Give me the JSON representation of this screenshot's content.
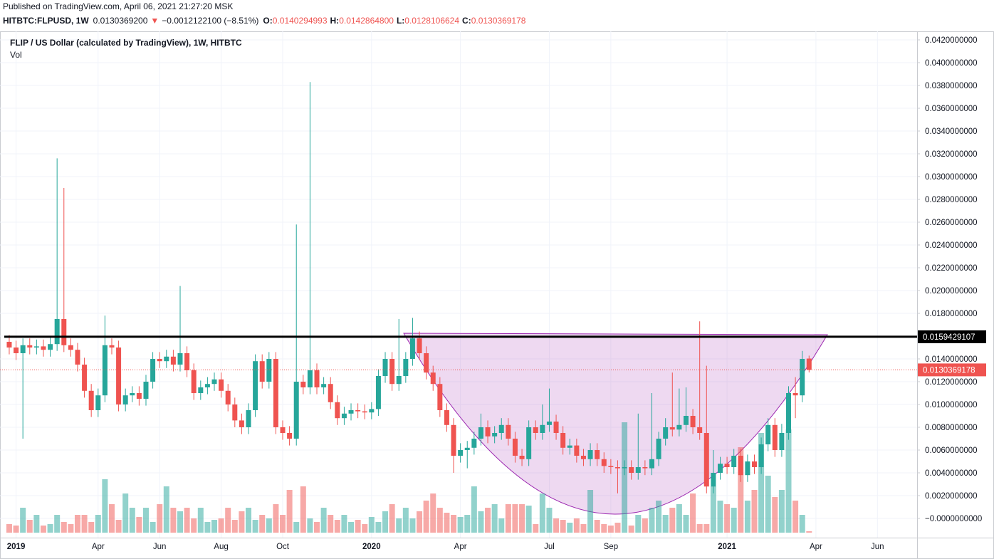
{
  "header": {
    "published": "Published on TradingView.com, April 06, 2021 21:27:20 MSK",
    "symbol": "HITBTC:FLPUSD, 1W",
    "last": "0.0130369200",
    "arrow": "▼",
    "change": "−0.0012122100 (−8.51%)",
    "o_label": "O:",
    "open": "0.0140294993",
    "h_label": "H:",
    "high": "0.0142864800",
    "l_label": "L:",
    "low": "0.0128106624",
    "c_label": "C:",
    "close": "0.0130369178"
  },
  "chart_data": {
    "type": "candlestick",
    "title": "FLIP / US Dollar (calculated by TradingView), 1W, HITBTC",
    "volume_label": "Vol",
    "up_color": "#26a69a",
    "down_color": "#ef5350",
    "grid": true,
    "xlim": [
      -1.35,
      132.8
    ],
    "xticks": [
      {
        "value": 1,
        "label": "2019"
      },
      {
        "value": 13,
        "label": "Apr"
      },
      {
        "value": 22,
        "label": "Jun"
      },
      {
        "value": 31,
        "label": "Aug"
      },
      {
        "value": 40,
        "label": "Oct"
      },
      {
        "value": 53,
        "label": "2020"
      },
      {
        "value": 66,
        "label": "Apr"
      },
      {
        "value": 79,
        "label": "Jul"
      },
      {
        "value": 88,
        "label": "Sep"
      },
      {
        "value": 105,
        "label": "2021"
      },
      {
        "value": 118,
        "label": "Apr"
      },
      {
        "value": 127,
        "label": "Jun"
      }
    ],
    "ylim": [
      -0.0016875,
      0.04275
    ],
    "yticks": [
      {
        "value": 0.042,
        "label": "0.0420000000"
      },
      {
        "value": 0.04,
        "label": "0.0400000000"
      },
      {
        "value": 0.038,
        "label": "0.0380000000"
      },
      {
        "value": 0.036,
        "label": "0.0360000000"
      },
      {
        "value": 0.034,
        "label": "0.0340000000"
      },
      {
        "value": 0.032,
        "label": "0.0320000000"
      },
      {
        "value": 0.03,
        "label": "0.0300000000"
      },
      {
        "value": 0.028,
        "label": "0.0280000000"
      },
      {
        "value": 0.026,
        "label": "0.0260000000"
      },
      {
        "value": 0.024,
        "label": "0.0240000000"
      },
      {
        "value": 0.022,
        "label": "0.0220000000"
      },
      {
        "value": 0.02,
        "label": "0.0200000000"
      },
      {
        "value": 0.018,
        "label": "0.0180000000"
      },
      {
        "value": 0.016,
        "label": "0.0160000000"
      },
      {
        "value": 0.014,
        "label": "0.0140000000"
      },
      {
        "value": 0.012,
        "label": "0.0120000000"
      },
      {
        "value": 0.01,
        "label": "0.0100000000"
      },
      {
        "value": 0.008,
        "label": "0.0080000000"
      },
      {
        "value": 0.006,
        "label": "0.0060000000"
      },
      {
        "value": 0.004,
        "label": "0.0040000000"
      },
      {
        "value": 0.002,
        "label": "0.0020000000"
      },
      {
        "value": 0,
        "label": "−0.0000000000"
      }
    ],
    "hline": 0.0159429107,
    "open": [
      0.0155,
      0.015,
      0.0145,
      0.0152,
      0.015,
      0.0151,
      0.0148,
      0.0153,
      0.0175,
      0.0152,
      0.0148,
      0.0135,
      0.0112,
      0.0095,
      0.0108,
      0.0152,
      0.015,
      0.01,
      0.0108,
      0.011,
      0.0105,
      0.012,
      0.014,
      0.0138,
      0.0142,
      0.0135,
      0.0145,
      0.013,
      0.011,
      0.0115,
      0.0118,
      0.0122,
      0.0112,
      0.01,
      0.0086,
      0.008,
      0.0095,
      0.0138,
      0.012,
      0.014,
      0.008,
      0.0075,
      0.007,
      0.012,
      0.0115,
      0.013,
      0.0115,
      0.0118,
      0.0102,
      0.0088,
      0.0092,
      0.0095,
      0.0094,
      0.0093,
      0.0096,
      0.0125,
      0.014,
      0.0118,
      0.0125,
      0.014,
      0.0158,
      0.0145,
      0.0128,
      0.0118,
      0.0095,
      0.0082,
      0.0055,
      0.006,
      0.0062,
      0.007,
      0.008,
      0.0072,
      0.0075,
      0.0082,
      0.007,
      0.0055,
      0.0052,
      0.008,
      0.0075,
      0.0082,
      0.0085,
      0.0075,
      0.0062,
      0.0064,
      0.0055,
      0.0052,
      0.006,
      0.0052,
      0.0046,
      0.0045,
      0.0044,
      0.0045,
      0.004,
      0.0045,
      0.0044,
      0.0052,
      0.007,
      0.008,
      0.0078,
      0.0082,
      0.009,
      0.008,
      0.0075,
      0.0028,
      0.004,
      0.0048,
      0.0045,
      0.0055,
      0.0038,
      0.005,
      0.0045,
      0.0065,
      0.0082,
      0.006,
      0.0075,
      0.011,
      0.0108,
      0.0140294993
    ],
    "high": [
      0.0161,
      0.0156,
      0.0158,
      0.0158,
      0.0157,
      0.0157,
      0.0159,
      0.0316,
      0.029,
      0.0158,
      0.0154,
      0.0141,
      0.0118,
      0.0114,
      0.0178,
      0.0158,
      0.0156,
      0.0114,
      0.0116,
      0.0116,
      0.0126,
      0.0146,
      0.0146,
      0.0148,
      0.0148,
      0.0204,
      0.0151,
      0.0136,
      0.0121,
      0.0124,
      0.0128,
      0.0128,
      0.0118,
      0.0106,
      0.0092,
      0.0101,
      0.0144,
      0.0144,
      0.0146,
      0.0146,
      0.0086,
      0.0081,
      0.0258,
      0.0126,
      0.0383,
      0.0136,
      0.0124,
      0.0124,
      0.0108,
      0.0098,
      0.0101,
      0.0101,
      0.01,
      0.0102,
      0.0131,
      0.0146,
      0.0146,
      0.0175,
      0.0146,
      0.0176,
      0.0164,
      0.0151,
      0.0134,
      0.0124,
      0.0101,
      0.0088,
      0.0066,
      0.0068,
      0.0076,
      0.0092,
      0.0086,
      0.0081,
      0.0088,
      0.0088,
      0.0076,
      0.0061,
      0.0086,
      0.0086,
      0.01,
      0.0114,
      0.0091,
      0.0081,
      0.007,
      0.007,
      0.0061,
      0.0066,
      0.0066,
      0.0058,
      0.0052,
      0.0051,
      0.0051,
      0.0051,
      0.0092,
      0.0051,
      0.011,
      0.0076,
      0.0088,
      0.0128,
      0.0114,
      0.0115,
      0.0096,
      0.0173,
      0.0134,
      0.006,
      0.0054,
      0.0054,
      0.0061,
      0.0061,
      0.0056,
      0.0056,
      0.0071,
      0.0088,
      0.0088,
      0.0083,
      0.0116,
      0.0124,
      0.0147,
      0.01428648
    ],
    "low": [
      0.0144,
      0.0139,
      0.007,
      0.0144,
      0.0144,
      0.0142,
      0.0142,
      0.0147,
      0.0146,
      0.0142,
      0.0129,
      0.0106,
      0.0089,
      0.0089,
      0.0102,
      0.0144,
      0.0094,
      0.0094,
      0.0102,
      0.0099,
      0.0099,
      0.0114,
      0.0132,
      0.0132,
      0.0129,
      0.0129,
      0.0124,
      0.0104,
      0.0104,
      0.0109,
      0.0112,
      0.0106,
      0.0094,
      0.008,
      0.0074,
      0.0074,
      0.0089,
      0.0114,
      0.0114,
      0.0074,
      0.0069,
      0.0064,
      0.0064,
      0.0109,
      0.0109,
      0.0109,
      0.0109,
      0.0096,
      0.0082,
      0.0082,
      0.0086,
      0.0088,
      0.0087,
      0.0087,
      0.009,
      0.0119,
      0.0112,
      0.0112,
      0.0119,
      0.0134,
      0.0139,
      0.0122,
      0.0112,
      0.0089,
      0.0076,
      0.004,
      0.0049,
      0.0044,
      0.0056,
      0.0064,
      0.0066,
      0.0066,
      0.0069,
      0.0064,
      0.0049,
      0.0046,
      0.0046,
      0.0069,
      0.0069,
      0.0076,
      0.0069,
      0.0056,
      0.0056,
      0.0049,
      0.0046,
      0.0046,
      0.0046,
      0.004,
      0.0039,
      0.0022,
      0.0038,
      0.0034,
      0.0034,
      0.0038,
      0.0038,
      0.0046,
      0.0064,
      0.0072,
      0.0072,
      0.0076,
      0.0074,
      0.0069,
      0.0022,
      0.0022,
      0.0034,
      0.0039,
      0.0039,
      0.0032,
      0.0032,
      0.0039,
      0.0039,
      0.0059,
      0.0054,
      0.0054,
      0.0069,
      0.0088,
      0.0102,
      0.0128106624
    ],
    "close": [
      0.015,
      0.0145,
      0.0152,
      0.015,
      0.0151,
      0.0148,
      0.0153,
      0.0175,
      0.0152,
      0.0148,
      0.0135,
      0.0112,
      0.0095,
      0.0108,
      0.0152,
      0.015,
      0.01,
      0.0108,
      0.011,
      0.0105,
      0.012,
      0.014,
      0.0138,
      0.0142,
      0.0135,
      0.0145,
      0.013,
      0.011,
      0.0115,
      0.0118,
      0.0122,
      0.0112,
      0.01,
      0.0086,
      0.008,
      0.0095,
      0.0138,
      0.012,
      0.014,
      0.008,
      0.0075,
      0.007,
      0.012,
      0.0115,
      0.013,
      0.0115,
      0.0118,
      0.0102,
      0.0088,
      0.0092,
      0.0095,
      0.0094,
      0.0093,
      0.0096,
      0.0125,
      0.014,
      0.0118,
      0.0125,
      0.014,
      0.0158,
      0.0145,
      0.0128,
      0.0118,
      0.0095,
      0.0082,
      0.0055,
      0.006,
      0.0062,
      0.007,
      0.008,
      0.0072,
      0.0075,
      0.0082,
      0.007,
      0.0055,
      0.0052,
      0.008,
      0.0075,
      0.0082,
      0.0085,
      0.0075,
      0.0062,
      0.0064,
      0.0055,
      0.0052,
      0.006,
      0.0052,
      0.0046,
      0.0045,
      0.0044,
      0.0045,
      0.004,
      0.0045,
      0.0044,
      0.0052,
      0.007,
      0.008,
      0.0078,
      0.0082,
      0.009,
      0.008,
      0.0075,
      0.0028,
      0.004,
      0.0048,
      0.0045,
      0.0055,
      0.0038,
      0.005,
      0.0045,
      0.0065,
      0.0082,
      0.006,
      0.0075,
      0.011,
      0.0108,
      0.014,
      0.0130369178
    ],
    "vlim": [
      0,
      160
    ],
    "volume": [
      12,
      10,
      35,
      18,
      25,
      10,
      12,
      25,
      15,
      12,
      25,
      25,
      15,
      25,
      75,
      40,
      18,
      55,
      35,
      22,
      35,
      15,
      40,
      65,
      35,
      30,
      35,
      20,
      35,
      15,
      18,
      20,
      35,
      18,
      30,
      35,
      18,
      25,
      20,
      40,
      25,
      60,
      15,
      65,
      20,
      15,
      35,
      25,
      18,
      25,
      15,
      18,
      12,
      22,
      15,
      30,
      40,
      20,
      35,
      20,
      30,
      45,
      55,
      35,
      28,
      25,
      22,
      25,
      65,
      30,
      35,
      40,
      20,
      40,
      40,
      40,
      38,
      12,
      55,
      35,
      20,
      18,
      14,
      20,
      12,
      60,
      18,
      12,
      10,
      14,
      155,
      10,
      25,
      20,
      35,
      45,
      25,
      35,
      40,
      25,
      55,
      12,
      12,
      65,
      45,
      40,
      35,
      120,
      45,
      60,
      140,
      80,
      50,
      60,
      145,
      45,
      25,
      2
    ]
  }
}
